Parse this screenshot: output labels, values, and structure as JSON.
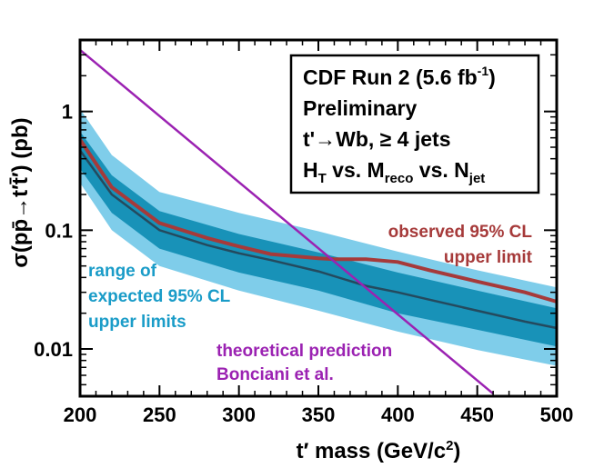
{
  "chart_data": {
    "type": "line",
    "xlabel": "t′ mass (GeV/c²)",
    "ylabel": "σ(pp̄→t′t̄′) (pb)",
    "xlim": [
      200,
      500
    ],
    "ylim": [
      0.004,
      4
    ],
    "yscale": "log",
    "x_ticks": [
      200,
      250,
      300,
      350,
      400,
      450,
      500
    ],
    "x_tick_labels": [
      "200",
      "250",
      "300",
      "350",
      "400",
      "450",
      "500"
    ],
    "y_ticks": [
      0.01,
      0.1,
      1
    ],
    "y_tick_labels": [
      "0.01",
      "0.1",
      "1"
    ],
    "legend_box": {
      "lines": [
        "CDF Run 2 (5.6 fb⁻¹)",
        "Preliminary",
        "t′→Wb, ≥ 4 jets",
        "Hₜ vs. Mᵣₑ꜀ₒ vs. Nⱼₑₜ"
      ],
      "line1": {
        "a": "CDF Run 2 (5.6 fb",
        "sup": "-1",
        "b": ")"
      },
      "line2": "Preliminary",
      "line3": "t'→Wb, ≥ 4 jets",
      "line4": {
        "h": "H",
        "h_sub": "T",
        "mid": " vs. M",
        "m_sub": "reco",
        "mid2": " vs. N",
        "n_sub": "jet"
      }
    },
    "annotations": {
      "observed": [
        "observed 95% CL",
        "upper limit"
      ],
      "expected": [
        "range of",
        "expected 95% CL",
        "upper limits"
      ],
      "theory": [
        "theoretical prediction",
        "Bonciani et al."
      ]
    },
    "colors": {
      "observed": "#a63a3a",
      "expected_median": "#244a5e",
      "band_1sigma": "#1892b8",
      "band_2sigma": "#7fcdea",
      "theory": "#9b22b2",
      "expected_text": "#1a9cc8"
    },
    "series": [
      {
        "name": "observed 95% CL upper limit",
        "x": [
          200,
          220,
          250,
          280,
          300,
          320,
          350,
          360,
          380,
          400,
          420,
          450,
          480,
          500
        ],
        "y": [
          0.58,
          0.23,
          0.115,
          0.086,
          0.073,
          0.063,
          0.058,
          0.057,
          0.057,
          0.054,
          0.046,
          0.037,
          0.03,
          0.025
        ]
      },
      {
        "name": "expected median",
        "x": [
          200,
          220,
          250,
          280,
          300,
          320,
          350,
          380,
          400,
          420,
          450,
          480,
          500
        ],
        "y": [
          0.47,
          0.2,
          0.1,
          0.075,
          0.064,
          0.056,
          0.045,
          0.034,
          0.03,
          0.026,
          0.021,
          0.017,
          0.015
        ]
      },
      {
        "name": "expected ±1σ band",
        "x": [
          200,
          220,
          250,
          300,
          350,
          400,
          450,
          500
        ],
        "lower": [
          0.33,
          0.14,
          0.07,
          0.044,
          0.031,
          0.02,
          0.0145,
          0.0105
        ],
        "upper": [
          0.68,
          0.29,
          0.145,
          0.093,
          0.065,
          0.044,
          0.031,
          0.022
        ]
      },
      {
        "name": "expected ±2σ band",
        "x": [
          200,
          220,
          250,
          300,
          350,
          400,
          450,
          500
        ],
        "lower": [
          0.25,
          0.1,
          0.05,
          0.031,
          0.021,
          0.014,
          0.0098,
          0.0072
        ],
        "upper": [
          1.05,
          0.43,
          0.21,
          0.14,
          0.098,
          0.066,
          0.046,
          0.033
        ]
      },
      {
        "name": "theoretical prediction Bonciani et al.",
        "x": [
          200,
          460
        ],
        "y": [
          3.3,
          0.0042
        ]
      }
    ]
  }
}
